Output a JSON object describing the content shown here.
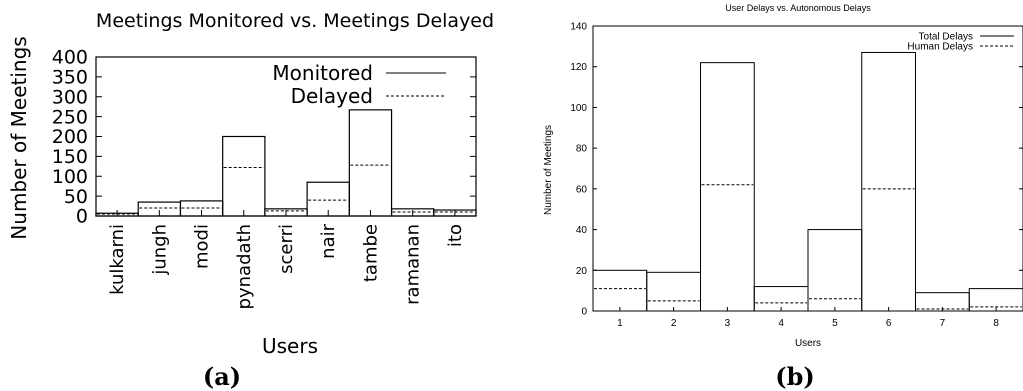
{
  "chart_data": [
    {
      "type": "bar",
      "title": "Meetings Monitored vs. Meetings Delayed",
      "xlabel": "Users",
      "ylabel": "Number of Meetings",
      "categories": [
        "kulkarni",
        "jungh",
        "modi",
        "pynadath",
        "scerri",
        "nair",
        "tambe",
        "ramanan",
        "ito"
      ],
      "series": [
        {
          "name": "Monitored",
          "style": "solid",
          "values": [
            7,
            35,
            38,
            200,
            18,
            85,
            267,
            18,
            15
          ]
        },
        {
          "name": "Delayed",
          "style": "dashed",
          "values": [
            5,
            20,
            20,
            122,
            13,
            40,
            128,
            10,
            10
          ]
        }
      ],
      "ylim": [
        0,
        400
      ],
      "yticks": [
        "0",
        "50",
        "100",
        "150",
        "200",
        "250",
        "300",
        "350",
        "400"
      ],
      "legend": "top-right",
      "caption": "(a)"
    },
    {
      "type": "bar",
      "title": "User Delays vs. Autonomous Delays",
      "xlabel": "Users",
      "ylabel": "Number of Meetings",
      "categories": [
        "1",
        "2",
        "3",
        "4",
        "5",
        "6",
        "7",
        "8"
      ],
      "series": [
        {
          "name": "Total Delays",
          "style": "solid",
          "values": [
            20,
            19,
            122,
            12,
            40,
            127,
            9,
            11
          ]
        },
        {
          "name": "Human Delays",
          "style": "dashed",
          "values": [
            11,
            5,
            62,
            4,
            6,
            60,
            1,
            2
          ]
        }
      ],
      "ylim": [
        0,
        140
      ],
      "yticks": [
        "0",
        "20",
        "40",
        "60",
        "80",
        "100",
        "120",
        "140"
      ],
      "legend": "top-right",
      "caption": "(b)"
    }
  ]
}
